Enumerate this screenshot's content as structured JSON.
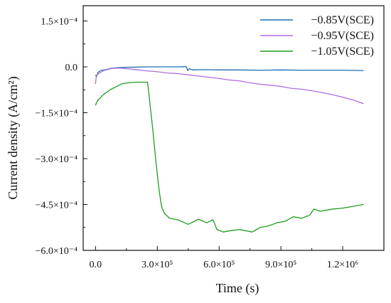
{
  "chart_data": {
    "type": "line",
    "title": "",
    "xlabel": "Time (s)",
    "ylabel": "Current density (A/cm²)",
    "xlim": [
      -60000,
      1400000
    ],
    "ylim": [
      -0.0006,
      0.0002
    ],
    "x_ticks": [
      {
        "value": 0,
        "label": "0.0"
      },
      {
        "value": 300000,
        "label": "3.0×10⁵"
      },
      {
        "value": 600000,
        "label": "6.0×10⁵"
      },
      {
        "value": 900000,
        "label": "9.0×10⁵"
      },
      {
        "value": 1200000,
        "label": "1.2×10⁶"
      }
    ],
    "y_ticks": [
      {
        "value": 0.00015,
        "label": "1.5×10⁻⁴"
      },
      {
        "value": 0,
        "label": "0.0"
      },
      {
        "value": -0.00015,
        "label": "−1.5×10⁻⁴"
      },
      {
        "value": -0.0003,
        "label": "−3.0×10⁻⁴"
      },
      {
        "value": -0.00045,
        "label": "−4.5×10⁻⁴"
      },
      {
        "value": -0.0006,
        "label": "−6.0×10⁻⁴"
      }
    ],
    "legend_position": "top-right",
    "grid": false,
    "series": [
      {
        "name": "−0.85V(SCE)",
        "color": "#1f6fb4",
        "points": [
          [
            0,
            -2.8e-05
          ],
          [
            5000,
            -3.2e-05
          ],
          [
            12000,
            -1.8e-05
          ],
          [
            25000,
            -1.2e-05
          ],
          [
            50000,
            -9e-06
          ],
          [
            80000,
            -4e-06
          ],
          [
            120000,
            -2e-06
          ],
          [
            180000,
            -1e-06
          ],
          [
            250000,
            0.0
          ],
          [
            320000,
            0.0
          ],
          [
            400000,
            0.0
          ],
          [
            440000,
            1e-06
          ],
          [
            448000,
            -1.2e-05
          ],
          [
            455000,
            -6e-06
          ],
          [
            470000,
            -1e-05
          ],
          [
            520000,
            -9e-06
          ],
          [
            600000,
            -1e-05
          ],
          [
            700000,
            -1e-05
          ],
          [
            800000,
            -1.1e-05
          ],
          [
            900000,
            -1e-05
          ],
          [
            1000000,
            -1.1e-05
          ],
          [
            1100000,
            -1.1e-05
          ],
          [
            1200000,
            -1.1e-05
          ],
          [
            1300000,
            -1.2e-05
          ]
        ]
      },
      {
        "name": "−0.95V(SCE)",
        "color": "#b06be6",
        "points": [
          [
            0,
            -5.5e-05
          ],
          [
            4000,
            -2.8e-05
          ],
          [
            15000,
            -2.2e-05
          ],
          [
            40000,
            -1.2e-05
          ],
          [
            80000,
            -5e-06
          ],
          [
            120000,
            -4e-06
          ],
          [
            180000,
            -8e-06
          ],
          [
            250000,
            -1.3e-05
          ],
          [
            300000,
            -1.6e-05
          ],
          [
            350000,
            -2e-05
          ],
          [
            400000,
            -2.2e-05
          ],
          [
            450000,
            -2.6e-05
          ],
          [
            500000,
            -3e-05
          ],
          [
            550000,
            -3.4e-05
          ],
          [
            600000,
            -3.8e-05
          ],
          [
            650000,
            -4.3e-05
          ],
          [
            700000,
            -4.6e-05
          ],
          [
            750000,
            -5.2e-05
          ],
          [
            800000,
            -5.7e-05
          ],
          [
            850000,
            -6e-05
          ],
          [
            900000,
            -6.4e-05
          ],
          [
            950000,
            -7e-05
          ],
          [
            1000000,
            -7.3e-05
          ],
          [
            1050000,
            -7.8e-05
          ],
          [
            1100000,
            -8.4e-05
          ],
          [
            1150000,
            -9.1e-05
          ],
          [
            1200000,
            -9.9e-05
          ],
          [
            1250000,
            -0.000108
          ],
          [
            1300000,
            -0.00012
          ]
        ]
      },
      {
        "name": "−1.05V(SCE)",
        "color": "#1e9c1e",
        "points": [
          [
            0,
            -0.000125
          ],
          [
            10000,
            -0.00011
          ],
          [
            20000,
            -0.000103
          ],
          [
            40000,
            -9e-05
          ],
          [
            70000,
            -7.5e-05
          ],
          [
            100000,
            -6.5e-05
          ],
          [
            130000,
            -5.5e-05
          ],
          [
            160000,
            -5.2e-05
          ],
          [
            200000,
            -5e-05
          ],
          [
            240000,
            -5e-05
          ],
          [
            252000,
            -5e-05
          ],
          [
            258000,
            -8e-05
          ],
          [
            268000,
            -0.000145
          ],
          [
            278000,
            -0.000205
          ],
          [
            288000,
            -0.000275
          ],
          [
            298000,
            -0.00034
          ],
          [
            308000,
            -0.0004
          ],
          [
            320000,
            -0.000455
          ],
          [
            335000,
            -0.00048
          ],
          [
            360000,
            -0.000495
          ],
          [
            400000,
            -0.0005
          ],
          [
            450000,
            -0.000515
          ],
          [
            500000,
            -0.000498
          ],
          [
            540000,
            -0.00051
          ],
          [
            570000,
            -0.0005
          ],
          [
            590000,
            -0.000532
          ],
          [
            620000,
            -0.00054
          ],
          [
            660000,
            -0.000535
          ],
          [
            700000,
            -0.000532
          ],
          [
            760000,
            -0.00054
          ],
          [
            800000,
            -0.000525
          ],
          [
            840000,
            -0.00052
          ],
          [
            880000,
            -0.00051
          ],
          [
            920000,
            -0.000505
          ],
          [
            960000,
            -0.00049
          ],
          [
            1000000,
            -0.000495
          ],
          [
            1040000,
            -0.000485
          ],
          [
            1060000,
            -0.000465
          ],
          [
            1090000,
            -0.000472
          ],
          [
            1150000,
            -0.000465
          ],
          [
            1200000,
            -0.000462
          ],
          [
            1250000,
            -0.000456
          ],
          [
            1300000,
            -0.00045
          ]
        ]
      }
    ]
  }
}
